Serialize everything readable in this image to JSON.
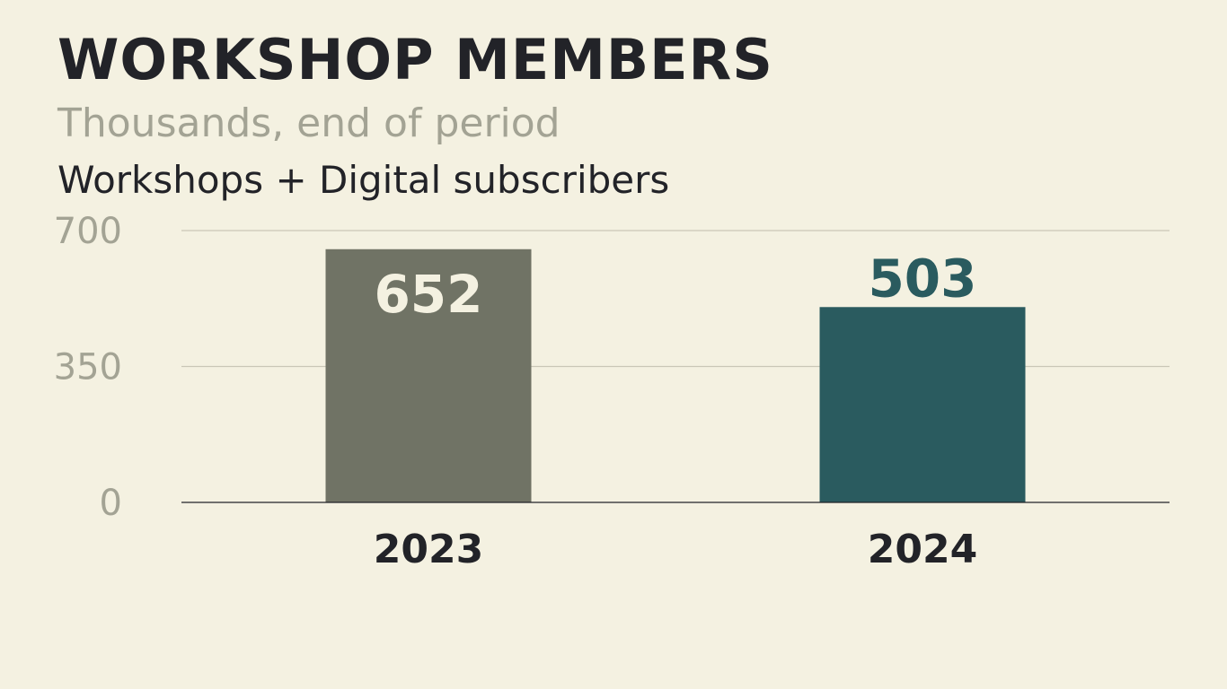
{
  "chart_data": {
    "type": "bar",
    "title": "WORKSHOP MEMBERS",
    "subtitle": "Thousands, end of period",
    "series_label": "Workshops + Digital subscribers",
    "categories": [
      "2023",
      "2024"
    ],
    "values": [
      652,
      503
    ],
    "bar_colors": [
      "#707365",
      "#2a5b5f"
    ],
    "value_label_colors": [
      "#f4f1e1",
      "#2a5b5f"
    ],
    "value_label_positions": [
      "inside",
      "above"
    ],
    "y_ticks": [
      0,
      350,
      700
    ],
    "ylim": [
      0,
      700
    ],
    "xlabel": "",
    "ylabel": "",
    "grid": true,
    "grid_color": "#c9c7b6",
    "axis_color": "#222328"
  }
}
